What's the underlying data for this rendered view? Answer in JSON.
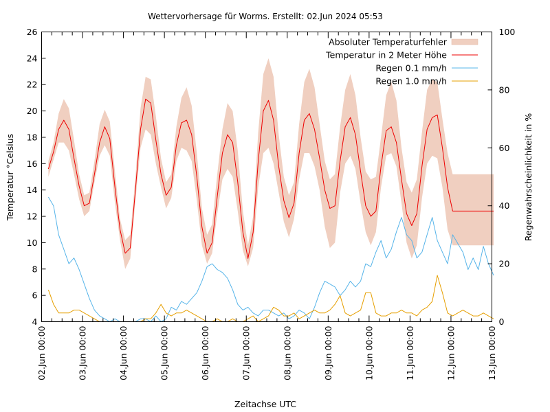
{
  "chart_data": {
    "type": "line",
    "title": "Wettervorhersage für Worms. Erstellt: 02.Jun 2024 05:53",
    "xlabel": "Zeitachse UTC",
    "ylabel": "Temperatur °Celsius",
    "y2label": "Regenwahrscheinlichkeit in %",
    "ylim": [
      4,
      26
    ],
    "y2lim": [
      0,
      100
    ],
    "yticks": [
      "4",
      "6",
      "8",
      "10",
      "12",
      "14",
      "16",
      "18",
      "20",
      "22",
      "24",
      "26"
    ],
    "y2ticks": [
      "0",
      "20",
      "40",
      "60",
      "80",
      "100"
    ],
    "xlim_days": [
      0,
      11
    ],
    "xticks": [
      "02.Jun 00:00",
      "03.Jun 00:00",
      "04.Jun 00:00",
      "05.Jun 00:00",
      "06.Jun 00:00",
      "07.Jun 00:00",
      "08.Jun 00:00",
      "09.Jun 00:00",
      "10.Jun 00:00",
      "11.Jun 00:00",
      "12.Jun 00:00",
      "13.Jun 00:00"
    ],
    "grid": false,
    "legend_position": "top-right",
    "x_unit": "hours since 02.Jun 00:00 UTC",
    "x": [
      4,
      7,
      10,
      13,
      16,
      19,
      22,
      25,
      28,
      31,
      34,
      37,
      40,
      43,
      46,
      49,
      52,
      55,
      58,
      61,
      64,
      67,
      70,
      73,
      76,
      79,
      82,
      85,
      88,
      91,
      94,
      97,
      100,
      103,
      106,
      109,
      112,
      115,
      118,
      121,
      124,
      127,
      130,
      133,
      136,
      139,
      142,
      145,
      148,
      151,
      154,
      157,
      160,
      163,
      166,
      169,
      172,
      175,
      178,
      181,
      184,
      187,
      190,
      193,
      196,
      199,
      202,
      205,
      208,
      211,
      214,
      217,
      220,
      223,
      226,
      229,
      232,
      235,
      238,
      241,
      244,
      247,
      250,
      253,
      256,
      259,
      262,
      265
    ],
    "series": [
      {
        "name": "Temperatur in 2 Meter Höhe",
        "color": "#ee0000",
        "values": [
          15.6,
          16.9,
          18.6,
          19.3,
          18.6,
          16.4,
          14.3,
          12.8,
          13.0,
          15.2,
          17.6,
          18.8,
          17.9,
          14.2,
          11.0,
          9.2,
          9.6,
          14.0,
          18.6,
          20.9,
          20.6,
          17.8,
          15.2,
          13.6,
          14.2,
          17.4,
          19.1,
          19.3,
          18.2,
          15.0,
          11.2,
          9.2,
          10.0,
          13.5,
          16.8,
          18.2,
          17.6,
          14.6,
          10.8,
          8.8,
          10.8,
          16.2,
          20.0,
          20.8,
          19.3,
          15.8,
          13.2,
          11.9,
          13.0,
          16.8,
          19.3,
          19.8,
          18.6,
          16.4,
          14.0,
          12.6,
          12.8,
          16.2,
          18.8,
          19.5,
          18.2,
          15.4,
          12.8,
          12.0,
          12.4,
          15.8,
          18.5,
          18.8,
          17.6,
          14.8,
          12.2,
          11.3,
          12.2,
          15.8,
          18.6,
          19.5,
          19.7,
          17.2,
          14.2,
          12.4,
          12.4,
          12.4,
          12.4,
          12.4,
          12.4,
          12.4,
          12.4,
          12.4
        ],
        "axis": "left"
      },
      {
        "name": "Absoluter Temperaturfehler",
        "color": "#f0cfc0",
        "type": "band",
        "lower": [
          15.0,
          16.3,
          17.6,
          17.6,
          17.0,
          15.2,
          13.3,
          12.0,
          12.4,
          14.6,
          16.6,
          17.4,
          16.6,
          13.0,
          10.2,
          8.0,
          8.8,
          13.2,
          17.2,
          18.6,
          18.2,
          16.0,
          14.2,
          12.6,
          13.4,
          16.2,
          17.2,
          17.0,
          16.2,
          13.2,
          9.8,
          8.4,
          9.2,
          12.2,
          14.8,
          15.6,
          15.0,
          12.4,
          9.4,
          8.2,
          9.6,
          14.2,
          16.8,
          17.2,
          16.0,
          13.8,
          11.6,
          10.4,
          11.8,
          14.8,
          16.8,
          16.8,
          15.8,
          14.0,
          11.2,
          9.6,
          10.0,
          13.8,
          16.0,
          16.6,
          15.6,
          13.0,
          10.8,
          9.8,
          10.8,
          14.2,
          16.6,
          16.8,
          15.8,
          13.0,
          10.0,
          8.8,
          9.8,
          13.4,
          16.0,
          16.6,
          16.4,
          14.2,
          11.0,
          9.8,
          9.8,
          9.8,
          9.8,
          9.8,
          9.8,
          9.8,
          9.8,
          9.8
        ],
        "upper": [
          16.2,
          17.6,
          19.8,
          20.9,
          20.2,
          17.8,
          15.2,
          13.6,
          13.8,
          16.2,
          19.0,
          20.1,
          19.2,
          15.4,
          11.8,
          10.2,
          10.6,
          15.0,
          20.2,
          22.6,
          22.4,
          19.6,
          16.4,
          14.6,
          15.2,
          18.8,
          21.0,
          21.8,
          20.4,
          16.8,
          12.6,
          10.6,
          11.4,
          15.2,
          18.6,
          20.6,
          20.0,
          17.0,
          12.4,
          9.8,
          12.0,
          18.4,
          22.8,
          24.0,
          22.6,
          18.2,
          15.0,
          13.6,
          14.6,
          19.0,
          22.2,
          23.2,
          21.8,
          19.0,
          16.2,
          14.8,
          15.2,
          18.8,
          21.6,
          22.8,
          21.2,
          18.0,
          15.4,
          14.8,
          15.0,
          18.0,
          21.2,
          22.2,
          20.8,
          17.2,
          14.6,
          13.8,
          14.8,
          18.4,
          21.6,
          22.4,
          22.2,
          19.4,
          16.8,
          15.2,
          15.2,
          15.2,
          15.2,
          15.2,
          15.2,
          15.2,
          15.2,
          15.2
        ],
        "axis": "left"
      },
      {
        "name": "Regen 0.1 mm/h",
        "color": "#56b4e9",
        "values": [
          43,
          40,
          30,
          25,
          20,
          22,
          18,
          13,
          8,
          4,
          2,
          1,
          0,
          1,
          0,
          0,
          0,
          0,
          1,
          1,
          0,
          2,
          0,
          1,
          5,
          4,
          7,
          6,
          8,
          10,
          14,
          19,
          20,
          18,
          17,
          15,
          11,
          6,
          4,
          5,
          3,
          2,
          4,
          4,
          3,
          2,
          3,
          1,
          2,
          4,
          3,
          1,
          5,
          10,
          14,
          13,
          12,
          9,
          11,
          14,
          12,
          14,
          20,
          19,
          24,
          28,
          22,
          25,
          31,
          36,
          30,
          28,
          22,
          24,
          30,
          36,
          28,
          24,
          20,
          30,
          27,
          24,
          18,
          22,
          18,
          26,
          20,
          16
        ]
      },
      {
        "name": "Regen 1.0 mm/h",
        "color": "#e69f00",
        "values": [
          11,
          6,
          3,
          3,
          3,
          4,
          4,
          3,
          2,
          1,
          0,
          0,
          0,
          0,
          0,
          0,
          0,
          0,
          0,
          1,
          1,
          3,
          6,
          3,
          2,
          3,
          3,
          4,
          3,
          2,
          1,
          0,
          0,
          1,
          0,
          0,
          1,
          0,
          0,
          1,
          2,
          0,
          1,
          2,
          5,
          4,
          2,
          2,
          3,
          1,
          2,
          3,
          4,
          3,
          3,
          4,
          6,
          9,
          3,
          2,
          3,
          4,
          10,
          10,
          3,
          2,
          2,
          3,
          3,
          4,
          3,
          3,
          2,
          4,
          5,
          7,
          16,
          10,
          3,
          2,
          3,
          4,
          3,
          2,
          2,
          3,
          2,
          1
        ]
      }
    ]
  }
}
